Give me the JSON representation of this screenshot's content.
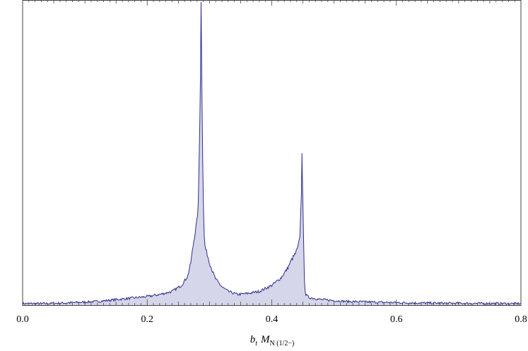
{
  "chart_data": {
    "type": "area",
    "title": "",
    "xlabel": {
      "main": "b",
      "main_sub": "t",
      "mass": "M",
      "mass_sub": "N (1/2−)"
    },
    "ylabel": "",
    "xlim": [
      0.0,
      0.8
    ],
    "ylim": [
      0,
      1.0
    ],
    "x_ticks": [
      {
        "value": 0.0,
        "label": "0.0"
      },
      {
        "value": 0.2,
        "label": "0.2"
      },
      {
        "value": 0.4,
        "label": "0.4"
      },
      {
        "value": 0.6,
        "label": "0.6"
      },
      {
        "value": 0.8,
        "label": "0.8"
      }
    ],
    "minor_tick_step": 0.05,
    "grid": false,
    "legend": "none",
    "colors": {
      "line": "#2e2e8c",
      "fill": "#d6d6ea",
      "frame": "#444444"
    },
    "series": [
      {
        "noise_amplitude": 0.012,
        "points": [
          [
            0.0,
            0.005
          ],
          [
            0.04,
            0.005
          ],
          [
            0.08,
            0.008
          ],
          [
            0.12,
            0.012
          ],
          [
            0.16,
            0.02
          ],
          [
            0.2,
            0.028
          ],
          [
            0.22,
            0.035
          ],
          [
            0.24,
            0.045
          ],
          [
            0.255,
            0.065
          ],
          [
            0.265,
            0.095
          ],
          [
            0.27,
            0.14
          ],
          [
            0.274,
            0.2
          ],
          [
            0.277,
            0.24
          ],
          [
            0.28,
            0.28
          ],
          [
            0.282,
            0.33
          ],
          [
            0.284,
            0.55
          ],
          [
            0.2855,
            0.75
          ],
          [
            0.2865,
            0.998
          ],
          [
            0.2875,
            0.78
          ],
          [
            0.289,
            0.5
          ],
          [
            0.291,
            0.24
          ],
          [
            0.293,
            0.19
          ],
          [
            0.296,
            0.17
          ],
          [
            0.3,
            0.14
          ],
          [
            0.305,
            0.11
          ],
          [
            0.31,
            0.085
          ],
          [
            0.32,
            0.06
          ],
          [
            0.33,
            0.045
          ],
          [
            0.345,
            0.035
          ],
          [
            0.36,
            0.038
          ],
          [
            0.38,
            0.045
          ],
          [
            0.4,
            0.065
          ],
          [
            0.415,
            0.09
          ],
          [
            0.425,
            0.12
          ],
          [
            0.432,
            0.15
          ],
          [
            0.438,
            0.17
          ],
          [
            0.442,
            0.19
          ],
          [
            0.445,
            0.22
          ],
          [
            0.4475,
            0.36
          ],
          [
            0.4485,
            0.5
          ],
          [
            0.4495,
            0.38
          ],
          [
            0.451,
            0.22
          ],
          [
            0.452,
            0.1
          ],
          [
            0.454,
            0.035
          ],
          [
            0.46,
            0.025
          ],
          [
            0.48,
            0.018
          ],
          [
            0.52,
            0.012
          ],
          [
            0.56,
            0.01
          ],
          [
            0.6,
            0.008
          ],
          [
            0.68,
            0.006
          ],
          [
            0.8,
            0.005
          ]
        ]
      }
    ]
  }
}
